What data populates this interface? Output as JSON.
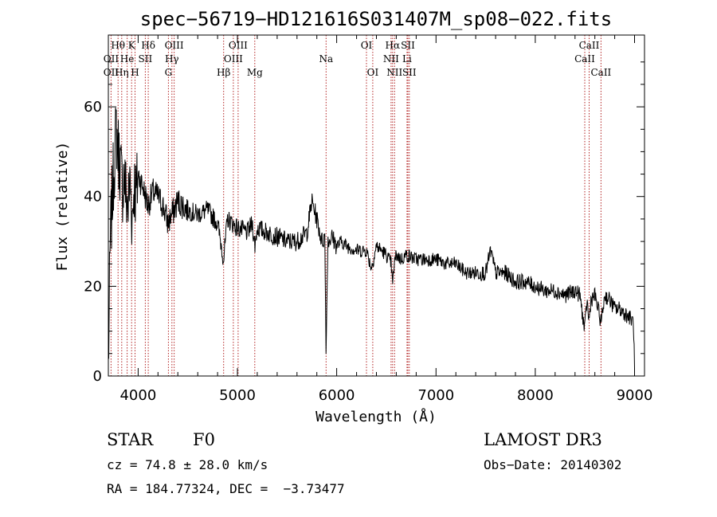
{
  "chart_data": {
    "type": "line",
    "title": "spec−56719−HD121616S031407M_sp08−022.fits",
    "xlabel": "Wavelength (Å)",
    "ylabel": "Flux (relative)",
    "xlim": [
      3700,
      9100
    ],
    "ylim": [
      0,
      76
    ],
    "xticks": [
      4000,
      5000,
      6000,
      7000,
      8000,
      9000
    ],
    "yticks": [
      0,
      20,
      40,
      60
    ],
    "grid": false,
    "series": [
      {
        "x": [
          3700,
          3720,
          3740,
          3760,
          3780,
          3800,
          3820,
          3840,
          3860,
          3880,
          3900,
          3920,
          3940,
          3960,
          3980,
          4000,
          4050,
          4100,
          4150,
          4200,
          4250,
          4300,
          4340,
          4400,
          4500,
          4600,
          4700,
          4800,
          4861,
          4900,
          5000,
          5100,
          5150,
          5175,
          5200,
          5300,
          5400,
          5500,
          5600,
          5700,
          5750,
          5800,
          5850,
          5880,
          5893,
          5910,
          5950,
          6000,
          6050,
          6100,
          6200,
          6300,
          6350,
          6400,
          6450,
          6500,
          6550,
          6563,
          6580,
          6600,
          6650,
          6700,
          6800,
          6900,
          7000,
          7100,
          7200,
          7300,
          7400,
          7500,
          7550,
          7600,
          7700,
          7800,
          7900,
          8000,
          8100,
          8200,
          8300,
          8400,
          8450,
          8498,
          8520,
          8542,
          8560,
          8600,
          8662,
          8700,
          8750,
          8800,
          8850,
          8900,
          8950,
          8990,
          9000
        ],
        "y": [
          2,
          30,
          40,
          48,
          55,
          50,
          47,
          42,
          45,
          40,
          38,
          44,
          35,
          43,
          40,
          45,
          42,
          38,
          41,
          40,
          38,
          34,
          36,
          39,
          37,
          36,
          37,
          34,
          26,
          35,
          33,
          32,
          34,
          29,
          33,
          32,
          31,
          30,
          30,
          32,
          39,
          35,
          30,
          31,
          5,
          30,
          31,
          29,
          30,
          29,
          28,
          28,
          24,
          29,
          28,
          27,
          25,
          20,
          25,
          27,
          26,
          27,
          26,
          26,
          26,
          25,
          25,
          23,
          23,
          23,
          28,
          23,
          23,
          21,
          21,
          20,
          19,
          19,
          18,
          19,
          18,
          10,
          17,
          12,
          17,
          18,
          12,
          18,
          17,
          15,
          15,
          14,
          13,
          12,
          1
        ]
      }
    ],
    "line_labels": [
      {
        "text": "Hθ",
        "x": 3798,
        "row": 1
      },
      {
        "text": "K",
        "x": 3934,
        "row": 1
      },
      {
        "text": "Hδ",
        "x": 4102,
        "row": 1
      },
      {
        "text": "OIII",
        "x": 4363,
        "row": 1
      },
      {
        "text": "OIII",
        "x": 5007,
        "row": 1
      },
      {
        "text": "OI",
        "x": 6300,
        "row": 1
      },
      {
        "text": "Hα",
        "x": 6563,
        "row": 1
      },
      {
        "text": "SII",
        "x": 6717,
        "row": 1
      },
      {
        "text": "CaII",
        "x": 8542,
        "row": 1
      },
      {
        "text": "OII",
        "x": 3727,
        "row": 2
      },
      {
        "text": "He",
        "x": 3889,
        "row": 2
      },
      {
        "text": "SII",
        "x": 4072,
        "row": 2
      },
      {
        "text": "Hγ",
        "x": 4340,
        "row": 2
      },
      {
        "text": "OIII",
        "x": 4959,
        "row": 2
      },
      {
        "text": "Na",
        "x": 5893,
        "row": 2
      },
      {
        "text": "NII",
        "x": 6548,
        "row": 2
      },
      {
        "text": "Li",
        "x": 6708,
        "row": 2
      },
      {
        "text": "CaII",
        "x": 8498,
        "row": 2
      },
      {
        "text": "OII",
        "x": 3727,
        "row": 3
      },
      {
        "text": "Hη",
        "x": 3835,
        "row": 3
      },
      {
        "text": "H",
        "x": 3969,
        "row": 3
      },
      {
        "text": "G",
        "x": 4305,
        "row": 3
      },
      {
        "text": "Hβ",
        "x": 4861,
        "row": 3
      },
      {
        "text": "Mg",
        "x": 5175,
        "row": 3
      },
      {
        "text": "OI",
        "x": 6363,
        "row": 3
      },
      {
        "text": "NII",
        "x": 6583,
        "row": 3
      },
      {
        "text": "SII",
        "x": 6731,
        "row": 3
      },
      {
        "text": "CaII",
        "x": 8662,
        "row": 3
      }
    ],
    "line_markers": [
      3727,
      3798,
      3835,
      3889,
      3934,
      3969,
      4072,
      4102,
      4305,
      4340,
      4363,
      4861,
      4959,
      5007,
      5175,
      5893,
      6300,
      6363,
      6548,
      6563,
      6583,
      6708,
      6717,
      6731,
      8498,
      8542,
      8662
    ]
  },
  "info": {
    "object_class": "STAR",
    "subclass": "F0",
    "survey": "LAMOST DR3",
    "cz": "cz = 74.8 ± 28.0 km/s",
    "obs_date": "Obs−Date: 20140302",
    "coords": "RA = 184.77324, DEC =  −3.73477"
  },
  "colors": {
    "line_marker": "#b22222",
    "spectrum": "#000000"
  }
}
